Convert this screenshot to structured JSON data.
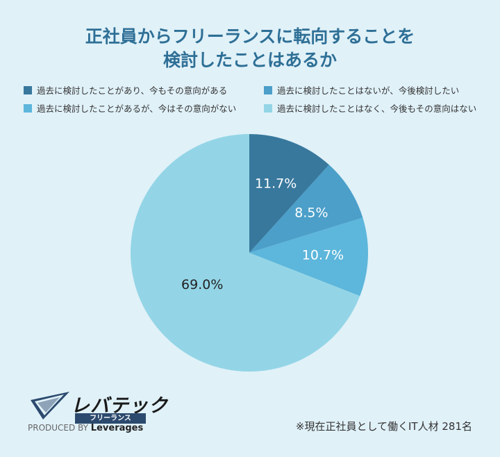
{
  "title_line1": "正社員からフリーランスに転向することを",
  "title_line2": "検討したことはあるか",
  "chart_data": {
    "type": "pie",
    "categories": [
      "過去に検討したことがあり、今もその意向がある",
      "過去に検討したことはないが、今後検討したい",
      "過去に検討したことがあるが、今はその意向がない",
      "過去に検討したことはなく、今後もその意向はない"
    ],
    "values": [
      11.7,
      8.5,
      10.7,
      69.0
    ],
    "data_labels": [
      "11.7%",
      "8.5%",
      "10.7%",
      "69.0%"
    ],
    "colors": [
      "#38789d",
      "#4b9fc9",
      "#5db6db",
      "#93d5e6"
    ],
    "label_colors": [
      "#ffffff",
      "#ffffff",
      "#ffffff",
      "#222222"
    ],
    "legend_position": "top"
  },
  "logo": {
    "brand": "レバテック",
    "sub": "フリーランス",
    "produced_by": "PRODUCED BY",
    "company": "Leverages"
  },
  "note": "※現在正社員として働くIT人材 281名"
}
